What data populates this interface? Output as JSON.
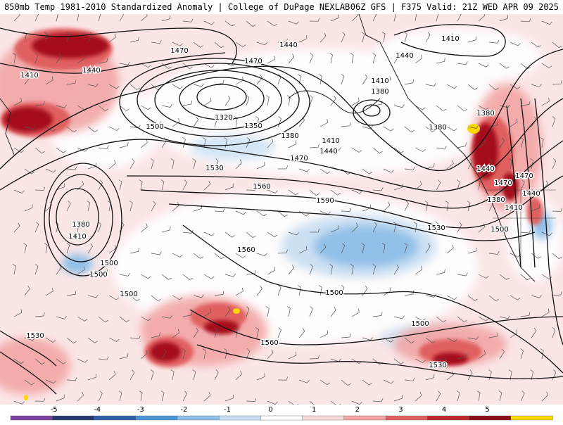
{
  "header": {
    "title_left": "850mb Temp 1981-2010 Standardized Anomaly | College of DuPage NEXLAB",
    "title_right": "06Z GFS | F375 Valid: 21Z WED APR 09 2025"
  },
  "map": {
    "field": "850mb Temperature Standardized Anomaly",
    "overlay": "850mb Geopotential Height (dam) contours with wind barbs",
    "contour_labels": [
      "1470",
      "1440",
      "1410",
      "1440",
      "1470",
      "1440",
      "1410",
      "1410",
      "1380",
      "1320",
      "1350",
      "1380",
      "1410",
      "1440",
      "1470",
      "1500",
      "1530",
      "1560",
      "1500",
      "1410",
      "1380",
      "1380",
      "1380",
      "1440",
      "1470",
      "1500",
      "1590",
      "1560",
      "1530",
      "1380",
      "1410",
      "1440",
      "1470",
      "1500",
      "1500",
      "1560",
      "1530",
      "1530",
      "1500",
      "1500"
    ]
  },
  "colorbar": {
    "tick_labels": [
      "-5",
      "-4",
      "-3",
      "-2",
      "-1",
      "0",
      "1",
      "2",
      "3",
      "4",
      "5"
    ],
    "colors": [
      "#7b3fa0",
      "#27386e",
      "#2f5fa8",
      "#4a95d6",
      "#8fbfe8",
      "#c9def2",
      "#ffffff",
      "#fad9d9",
      "#f2a5a5",
      "#e06060",
      "#c0272d",
      "#8a0a16",
      "#ffd700"
    ]
  }
}
